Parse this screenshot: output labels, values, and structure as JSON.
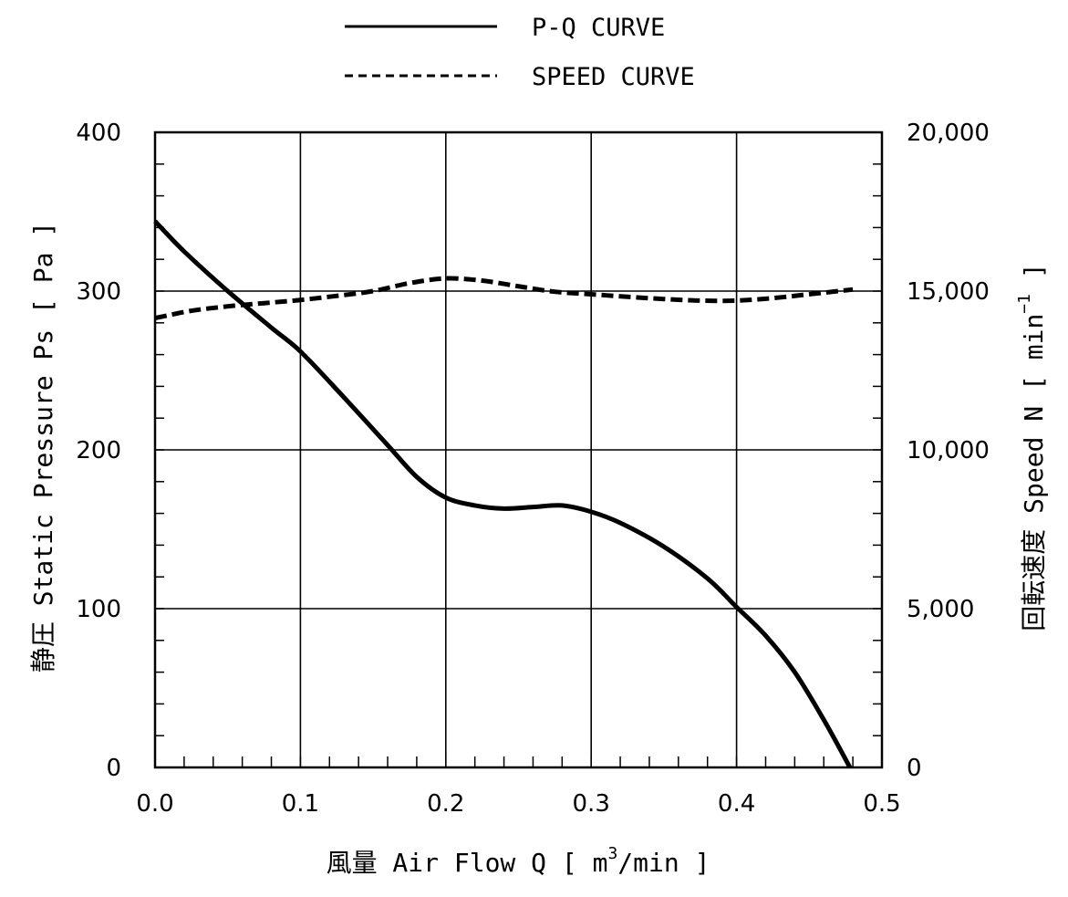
{
  "chart_data": {
    "type": "line",
    "title": "",
    "xlabel": "風量 Air Flow Q [ m³/min ]",
    "xlabel_parts": {
      "prefix": "風量 Air Flow Q [ m",
      "sup": "3",
      "suffix": "/min ]"
    },
    "ylabel": "静圧 Static Pressure Ps [ Pa ]",
    "y2label": "回転速度 Speed N [ min⁻¹ ]",
    "y2label_parts": {
      "prefix": "回転速度 Speed N [ min",
      "sup": "−1",
      "suffix": " ]"
    },
    "xlim": [
      0,
      0.5
    ],
    "ylim": [
      0,
      400
    ],
    "y2lim": [
      0,
      20000
    ],
    "x_ticks": [
      0,
      0.1,
      0.2,
      0.3,
      0.4,
      0.5
    ],
    "x_tick_labels": [
      "0.0",
      "0.1",
      "0.2",
      "0.3",
      "0.4",
      "0.5"
    ],
    "y_ticks": [
      0,
      100,
      200,
      300,
      400
    ],
    "y_tick_labels": [
      "0",
      "100",
      "200",
      "300",
      "400"
    ],
    "y2_ticks": [
      0,
      5000,
      10000,
      15000,
      20000
    ],
    "y2_tick_labels": [
      "0",
      "5,000",
      "10,000",
      "15,000",
      "20,000"
    ],
    "x_minor_step": 0.02,
    "y_minor_step": 20,
    "grid": true,
    "legend_position": "top-center",
    "series": [
      {
        "name": "P-Q CURVE",
        "axis": "left",
        "style": "solid",
        "color": "#000000",
        "x": [
          0,
          0.02,
          0.05,
          0.08,
          0.1,
          0.13,
          0.16,
          0.18,
          0.2,
          0.22,
          0.24,
          0.26,
          0.28,
          0.3,
          0.32,
          0.35,
          0.38,
          0.4,
          0.42,
          0.44,
          0.46,
          0.478
        ],
        "y": [
          344,
          325,
          300,
          277,
          262,
          233,
          203,
          183,
          170,
          165,
          163,
          164,
          165,
          161,
          154,
          139,
          119,
          101,
          83,
          60,
          30,
          0
        ]
      },
      {
        "name": "SPEED CURVE",
        "axis": "right",
        "style": "dashed",
        "color": "#000000",
        "x": [
          0,
          0.025,
          0.05,
          0.075,
          0.1,
          0.125,
          0.15,
          0.175,
          0.2,
          0.225,
          0.25,
          0.275,
          0.3,
          0.325,
          0.35,
          0.375,
          0.4,
          0.425,
          0.45,
          0.48
        ],
        "y": [
          14150,
          14380,
          14520,
          14620,
          14720,
          14850,
          15000,
          15250,
          15400,
          15330,
          15150,
          14980,
          14900,
          14820,
          14750,
          14700,
          14700,
          14780,
          14900,
          15050
        ]
      }
    ]
  }
}
